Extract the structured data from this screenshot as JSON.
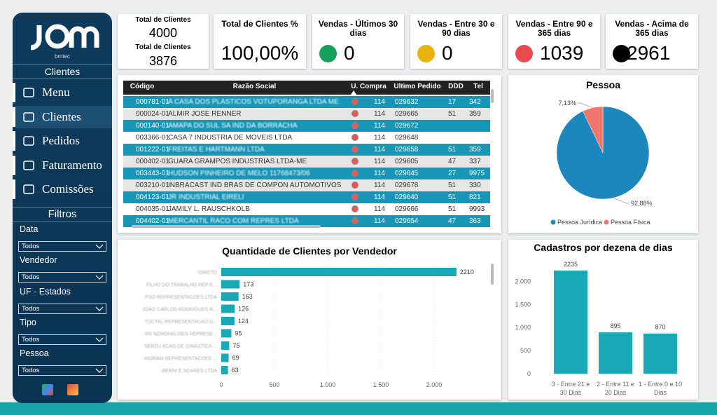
{
  "sidebar": {
    "logo": "bmtec",
    "section": "Clientes",
    "menu": [
      "Menu",
      "Clientes",
      "Pedidos",
      "Faturamento",
      "Comissões"
    ],
    "filters_title": "Filtros",
    "filters": [
      {
        "label": "Data",
        "value": "Todos"
      },
      {
        "label": "Vendedor",
        "value": "Todos"
      },
      {
        "label": "UF - Estados",
        "value": "Todos"
      },
      {
        "label": "Tipo",
        "value": "Todos"
      },
      {
        "label": "Pessoa",
        "value": "Todos"
      }
    ]
  },
  "kpis": [
    {
      "items": [
        {
          "title": "Total de Clientes",
          "value": 4000
        },
        {
          "title": "Total de Clientes",
          "value": 3876
        }
      ]
    },
    {
      "title": "Total de Clientes %",
      "value": "100,00%"
    },
    {
      "title": "Vendas - Últimos 30 dias",
      "value": 0,
      "color": "#17a05d"
    },
    {
      "title": "Vendas - Entre 30 e 90 dias",
      "value": 0,
      "color": "#e8b40c"
    },
    {
      "title": "Vendas - Entre 90 e 365 dias",
      "value": 1039,
      "color": "#e84a4f"
    },
    {
      "title": "Vendas - Acima de 365 dias",
      "value": 2961,
      "color": "#000000"
    }
  ],
  "table": {
    "columns": [
      "Código",
      "Razão Social",
      "U. Compra",
      "Ultimo Pedido",
      "DDD",
      "Tel"
    ],
    "rows": [
      [
        "000781-01",
        "A CASA DOS PLASTICOS VOTUPORANGA LTDA ME",
        114,
        "029632",
        17,
        "342"
      ],
      [
        "000024-01",
        "ALMIR JOSE RENNER",
        114,
        "029665",
        51,
        "359"
      ],
      [
        "000140-01",
        "AMAPA DO SUL SA IND DA BORRACHA",
        114,
        "029672",
        null,
        null
      ],
      [
        "003366-01",
        "CASA 7 INDUSTRIA DE MOVEIS LTDA",
        114,
        "029648",
        null,
        null
      ],
      [
        "001222-01",
        "FREITAS E HARTMANN LTDA",
        114,
        "029658",
        51,
        "359"
      ],
      [
        "000402-01",
        "GUARA GRAMPOS INDUSTRIAS LTDA-ME",
        114,
        "029605",
        47,
        "337"
      ],
      [
        "003443-01",
        "HUDSON PINHEIRO DE MELO 11768473/06",
        114,
        "029645",
        27,
        "9975"
      ],
      [
        "003210-01",
        "INBRACAST IND BRAS DE COMPON AUTOMOTIVOS",
        114,
        "029678",
        51,
        "330"
      ],
      [
        "004123-01",
        "JR INDUSTRIAL EIRELI",
        114,
        "029640",
        51,
        "821"
      ],
      [
        "004035-01",
        "JAMILY L. RAUSCHKOLB",
        114,
        "029666",
        51,
        "9993"
      ],
      [
        "004402-01",
        "MERCANTIL RACO COM REPRES LTDA",
        114,
        "029654",
        47,
        "363"
      ]
    ]
  },
  "charts": {
    "pessoa": {
      "type": "pie",
      "title": "Pessoa",
      "categories": [
        "Pessoa Jurídica",
        "Pessoa Física"
      ],
      "values": [
        92.88,
        7.13
      ],
      "value_labels": [
        "92,88%",
        "7,13%"
      ],
      "colors": [
        "#1b87bd",
        "#f2766b"
      ]
    },
    "vendedor": {
      "type": "bar",
      "orientation": "horizontal",
      "title": "Quantidade de Clientes por Vendedor",
      "color": "#19a9b6",
      "categories": [
        "DIRETO",
        "FILHO DO TRABALHO REP E...",
        "PSO REPRESENTACOES LTDA",
        "JOAO CARLOS RODRIGUES R...",
        "TOCTAL REPRESENTACAO D...",
        "RR NORDHAUSEN REPRESE...",
        "SERZU ACAO DE GINASTICA ...",
        "INORAM REPRESENTACOES ...",
        "BERNI E SOARES LTDA"
      ],
      "values": [
        2210,
        173,
        163,
        126,
        124,
        95,
        75,
        69,
        63
      ],
      "xlim": [
        0,
        2500
      ],
      "xticks": [
        0,
        500,
        {
          "value": 1000,
          "label": "1.000"
        },
        {
          "value": 1500,
          "label": "1.500"
        },
        {
          "value": 2000,
          "label": "2.000"
        }
      ]
    },
    "cadastros": {
      "type": "bar",
      "title": "Cadastros por dezena de dias",
      "color": "#19a9b6",
      "categories": [
        "3 - Entre 21 e 30 Dias",
        "2 - Entre 11 e 20 Dias",
        "1 - Entre 0 e 10 Dias"
      ],
      "values": [
        2235,
        895,
        870
      ],
      "ylim": [
        0,
        2400
      ],
      "yticks": [
        0,
        500,
        {
          "value": 1000,
          "label": "1.000"
        },
        {
          "value": 1500,
          "label": "1.500"
        },
        {
          "value": 2000,
          "label": "2.000"
        }
      ]
    }
  }
}
